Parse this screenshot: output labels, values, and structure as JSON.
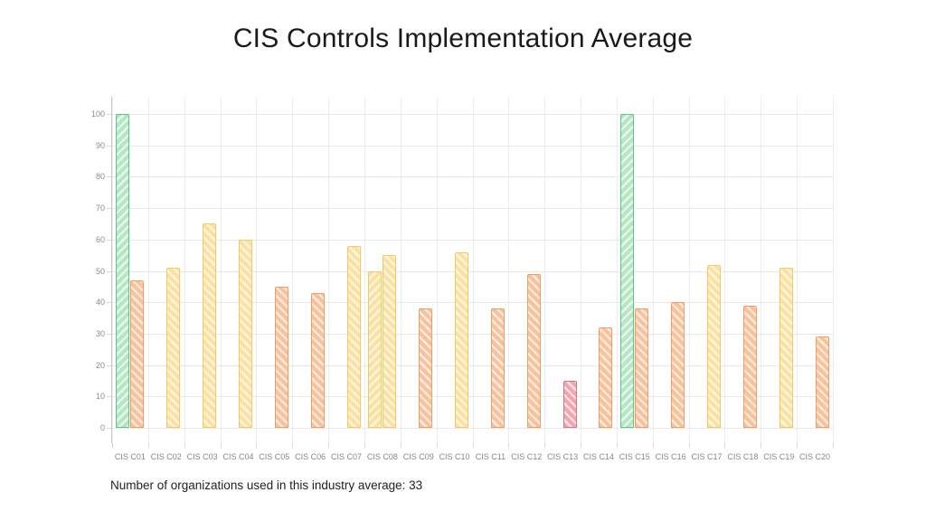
{
  "page": {
    "title": "CIS Controls Implementation Average",
    "caption": "Number of organizations used in this industry average: 33"
  },
  "chart_data": {
    "type": "bar",
    "title": "CIS Controls Implementation Average",
    "categories": [
      "CIS C01",
      "CIS C02",
      "CIS C03",
      "CIS C04",
      "CIS C05",
      "CIS C06",
      "CIS C07",
      "CIS C08",
      "CIS C09",
      "CIS C10",
      "CIS C11",
      "CIS C12",
      "CIS C13",
      "CIS C14",
      "CIS C15",
      "CIS C16",
      "CIS C17",
      "CIS C18",
      "CIS C19",
      "CIS C20"
    ],
    "series": [
      {
        "name": "series1",
        "pattern": "diagonal-right",
        "values": [
          100,
          null,
          null,
          null,
          null,
          null,
          null,
          50,
          null,
          null,
          null,
          null,
          null,
          null,
          100,
          null,
          null,
          null,
          null,
          null
        ]
      },
      {
        "name": "series2",
        "pattern": "diagonal-left",
        "values": [
          47,
          51,
          65,
          60,
          45,
          43,
          58,
          55,
          38,
          56,
          38,
          49,
          15,
          32,
          38,
          40,
          52,
          39,
          51,
          29
        ]
      }
    ],
    "xlabel": "",
    "ylabel": "",
    "ylim": [
      0,
      100
    ],
    "yticks": [
      0,
      10,
      20,
      30,
      40,
      50,
      60,
      70,
      80,
      90,
      100
    ],
    "grid": true,
    "legend": "none",
    "palette": {
      "green": {
        "fill": "#b6e7c5",
        "border": "#60c287"
      },
      "yellow": {
        "fill": "#fbe2a2",
        "border": "#f5c95f"
      },
      "orange": {
        "fill": "#f9c29c",
        "border": "#f09a66"
      },
      "red": {
        "fill": "#f2a7b0",
        "border": "#e0707e"
      }
    },
    "color_thresholds": [
      {
        "min": 70,
        "color": "green"
      },
      {
        "min": 50,
        "color": "yellow"
      },
      {
        "min": 16,
        "color": "orange"
      },
      {
        "min": 0,
        "color": "red"
      }
    ]
  }
}
